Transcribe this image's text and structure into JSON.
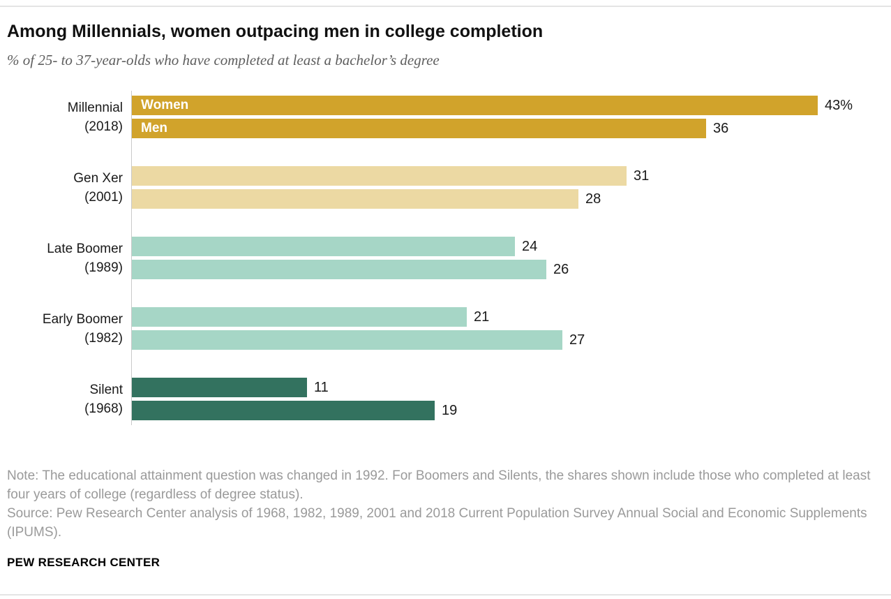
{
  "header": {
    "title": "Among Millennials, women outpacing men in college completion",
    "subtitle": "% of 25- to 37-year-olds who have completed at least a bachelor’s degree"
  },
  "chart_data": {
    "type": "bar",
    "orientation": "horizontal",
    "title": "Among Millennials, women outpacing men in college completion",
    "xlabel": "",
    "ylabel": "",
    "xlim": [
      0,
      43
    ],
    "grid": false,
    "legend_position": "inside-first-group",
    "categories": [
      "Millennial (2018)",
      "Gen Xer (2001)",
      "Late Boomer (1989)",
      "Early Boomer (1982)",
      "Silent (1968)"
    ],
    "series": [
      {
        "name": "Women",
        "values": [
          43,
          31,
          24,
          21,
          11
        ]
      },
      {
        "name": "Men",
        "values": [
          36,
          28,
          26,
          27,
          19
        ]
      }
    ],
    "groups": [
      {
        "label_lines": [
          "Millennial",
          "(2018)"
        ],
        "color": "#d1a32b",
        "bars": [
          {
            "series": "Women",
            "value": 43,
            "display": "43%",
            "inner_label": "Women"
          },
          {
            "series": "Men",
            "value": 36,
            "display": "36",
            "inner_label": "Men"
          }
        ]
      },
      {
        "label_lines": [
          "Gen Xer",
          "(2001)"
        ],
        "color": "#ecd9a3",
        "bars": [
          {
            "series": "Women",
            "value": 31,
            "display": "31",
            "inner_label": ""
          },
          {
            "series": "Men",
            "value": 28,
            "display": "28",
            "inner_label": ""
          }
        ]
      },
      {
        "label_lines": [
          "Late Boomer",
          "(1989)"
        ],
        "color": "#a6d6c6",
        "bars": [
          {
            "series": "Women",
            "value": 24,
            "display": "24",
            "inner_label": ""
          },
          {
            "series": "Men",
            "value": 26,
            "display": "26",
            "inner_label": ""
          }
        ]
      },
      {
        "label_lines": [
          "Early Boomer",
          "(1982)"
        ],
        "color": "#a6d6c6",
        "bars": [
          {
            "series": "Women",
            "value": 21,
            "display": "21",
            "inner_label": ""
          },
          {
            "series": "Men",
            "value": 27,
            "display": "27",
            "inner_label": ""
          }
        ]
      },
      {
        "label_lines": [
          "Silent",
          "(1968)"
        ],
        "color": "#33725f",
        "bars": [
          {
            "series": "Women",
            "value": 11,
            "display": "11",
            "inner_label": ""
          },
          {
            "series": "Men",
            "value": 19,
            "display": "19",
            "inner_label": ""
          }
        ]
      }
    ]
  },
  "footer": {
    "note": "Note: The educational attainment question was changed in 1992. For Boomers and Silents, the shares shown include those who completed at least four years of college (regardless of degree status).",
    "source": "Source: Pew Research Center analysis of 1968, 1982, 1989, 2001 and 2018 Current Population Survey Annual Social and Economic Supplements (IPUMS).",
    "brand": "PEW RESEARCH CENTER"
  }
}
